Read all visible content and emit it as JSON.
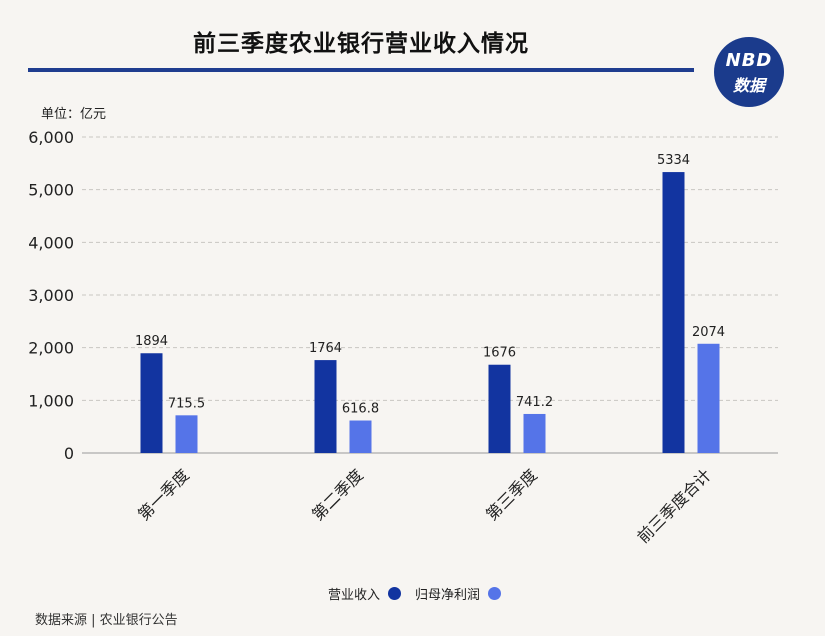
{
  "header": {
    "title": "前三季度农业银行营业收入情况",
    "logo_top": "NBD",
    "logo_bottom": "数据",
    "unit": "单位：亿元"
  },
  "footer": {
    "source": "数据来源 | 农业银行公告"
  },
  "colors": {
    "primary": "#1234a0",
    "secondary": "#5574e8",
    "rule": "#1f3d8f"
  },
  "chart_data": {
    "type": "bar",
    "categories": [
      "第一季度",
      "第二季度",
      "第三季度",
      "前三季度合计"
    ],
    "series": [
      {
        "name": "营业收入",
        "values": [
          1894,
          1764,
          1676,
          5334
        ],
        "labels": [
          "1894",
          "1764",
          "1676",
          "5334"
        ],
        "color": "#1234a0"
      },
      {
        "name": "归母净利润",
        "values": [
          715.5,
          616.8,
          741.2,
          2074
        ],
        "labels": [
          "715.5",
          "616.8",
          "741.2",
          "2074"
        ],
        "color": "#5574e8"
      }
    ],
    "yticks": [
      0,
      1000,
      2000,
      3000,
      4000,
      5000,
      6000
    ],
    "ytick_labels": [
      "0",
      "1,000",
      "2,000",
      "3,000",
      "4,000",
      "5,000",
      "6,000"
    ],
    "ylim": [
      0,
      6000
    ],
    "grid": true,
    "legend_position": "bottom-center"
  }
}
